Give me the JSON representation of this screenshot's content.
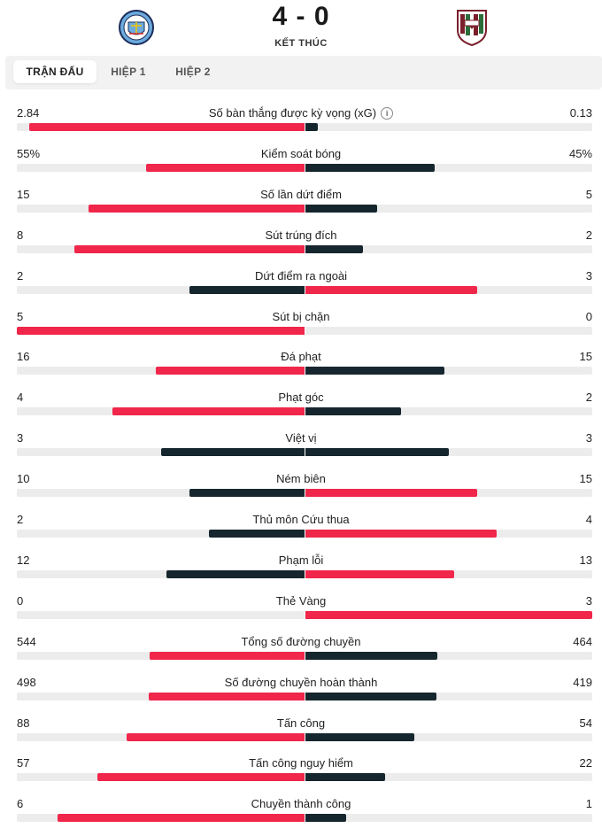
{
  "colors": {
    "winner": "#f0264a",
    "loser": "#16262e",
    "track": "#ececec"
  },
  "match": {
    "score": "4 - 0",
    "status": "KẾT THÚC"
  },
  "tabs": [
    {
      "label": "TRẬN ĐẤU",
      "active": true
    },
    {
      "label": "HIỆP 1",
      "active": false
    },
    {
      "label": "HIỆP 2",
      "active": false
    }
  ],
  "stats": [
    {
      "label": "Số bàn thắng được kỳ vọng (xG)",
      "home": "2.84",
      "away": "0.13",
      "info_icon": "info-icon"
    },
    {
      "label": "Kiểm soát bóng",
      "home": "55%",
      "away": "45%"
    },
    {
      "label": "Số lần dứt điểm",
      "home": "15",
      "away": "5"
    },
    {
      "label": "Sút trúng đích",
      "home": "8",
      "away": "2"
    },
    {
      "label": "Dứt điểm ra ngoài",
      "home": "2",
      "away": "3"
    },
    {
      "label": "Sút bị chặn",
      "home": "5",
      "away": "0"
    },
    {
      "label": "Đá phạt",
      "home": "16",
      "away": "15"
    },
    {
      "label": "Phạt góc",
      "home": "4",
      "away": "2"
    },
    {
      "label": "Việt vị",
      "home": "3",
      "away": "3"
    },
    {
      "label": "Ném biên",
      "home": "10",
      "away": "15"
    },
    {
      "label": "Thủ môn Cứu thua",
      "home": "2",
      "away": "4"
    },
    {
      "label": "Phạm lỗi",
      "home": "12",
      "away": "13"
    },
    {
      "label": "Thẻ Vàng",
      "home": "0",
      "away": "3"
    },
    {
      "label": "Tổng số đường chuyền",
      "home": "544",
      "away": "464"
    },
    {
      "label": "Số đường chuyền hoàn thành",
      "home": "498",
      "away": "419"
    },
    {
      "label": "Tấn công",
      "home": "88",
      "away": "54"
    },
    {
      "label": "Tấn công nguy hiểm",
      "home": "57",
      "away": "22"
    },
    {
      "label": "Chuyền thành công",
      "home": "6",
      "away": "1"
    }
  ]
}
